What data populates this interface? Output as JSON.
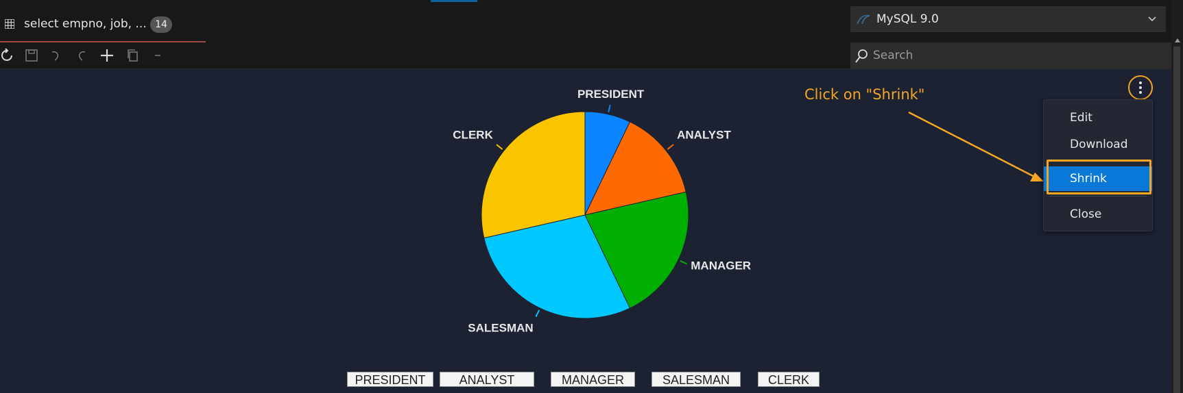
{
  "tab": {
    "label": "select empno, job, ...",
    "badge": "14"
  },
  "toolbar": {
    "icons": [
      "refresh-icon",
      "save-icon",
      "undo-icon",
      "redo-icon",
      "plus-icon",
      "copy-icon",
      "minus-icon"
    ]
  },
  "db_selector": {
    "label": "MySQL 9.0"
  },
  "search": {
    "placeholder": "Search"
  },
  "annotation": {
    "text": "Click on \"Shrink\"",
    "color": "#f5a623"
  },
  "menu": {
    "items": [
      {
        "label": "Edit"
      },
      {
        "label": "Download"
      },
      {
        "label": "Shrink",
        "active": true
      },
      {
        "label": "Close"
      }
    ]
  },
  "chart_data": {
    "type": "pie",
    "title": "",
    "slices": [
      {
        "label": "PRESIDENT",
        "value": 1,
        "color": "#0a84ff"
      },
      {
        "label": "ANALYST",
        "value": 2,
        "color": "#ff6a00"
      },
      {
        "label": "MANAGER",
        "value": 3,
        "color": "#00b000"
      },
      {
        "label": "SALESMAN",
        "value": 4,
        "color": "#00c8ff"
      },
      {
        "label": "CLERK",
        "value": 4,
        "color": "#f9c500"
      }
    ],
    "legend": [
      "PRESIDENT",
      "ANALYST",
      "MANAGER",
      "SALESMAN",
      "CLERK"
    ],
    "legend_position": "bottom"
  }
}
